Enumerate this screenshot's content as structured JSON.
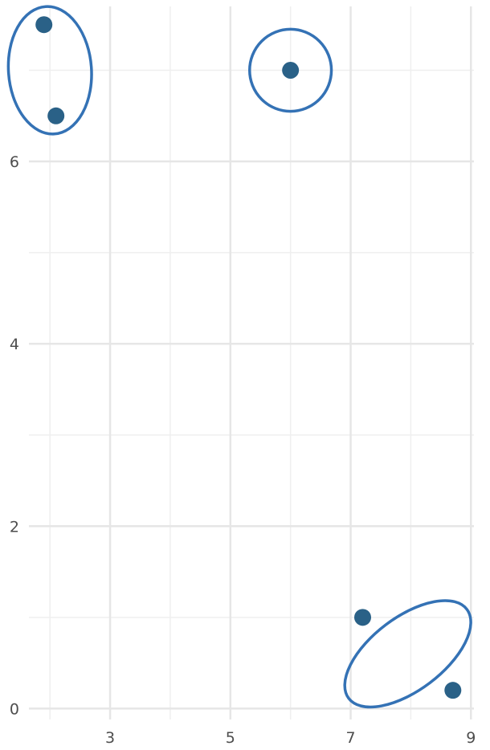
{
  "chart_data": {
    "type": "scatter",
    "title": "",
    "xlabel": "",
    "ylabel": "",
    "xlim": [
      1.65,
      9.05
    ],
    "ylim": [
      -0.12,
      7.7
    ],
    "x_major_ticks": [
      3,
      5,
      7,
      9
    ],
    "x_minor_ticks": [
      2,
      4,
      6,
      8
    ],
    "y_major_ticks": [
      0,
      2,
      4,
      6
    ],
    "y_minor_ticks": [
      1,
      3,
      5,
      7
    ],
    "x_tick_labels": [
      "3",
      "5",
      "7",
      "9"
    ],
    "y_tick_labels": [
      "0",
      "2",
      "4",
      "6"
    ],
    "grid": true,
    "point_color": "#2a6187",
    "ellipse_color": "#3472b5",
    "points": [
      {
        "x": 1.9,
        "y": 7.5
      },
      {
        "x": 2.1,
        "y": 6.5
      },
      {
        "x": 6.0,
        "y": 7.0
      },
      {
        "x": 7.2,
        "y": 1.0
      },
      {
        "x": 8.7,
        "y": 0.2
      }
    ],
    "clusters": [
      {
        "members": [
          0,
          1
        ],
        "center": [
          2.0,
          7.0
        ],
        "rx": 0.69,
        "ry": 0.7,
        "angle_deg": -4
      },
      {
        "members": [
          2
        ],
        "center": [
          6.0,
          7.0
        ],
        "rx": 0.68,
        "ry": 0.45,
        "angle_deg": 0
      },
      {
        "members": [
          3,
          4
        ],
        "center": [
          7.95,
          0.6
        ],
        "rx": 1.23,
        "ry": 0.4,
        "angle_deg": -37
      }
    ]
  }
}
